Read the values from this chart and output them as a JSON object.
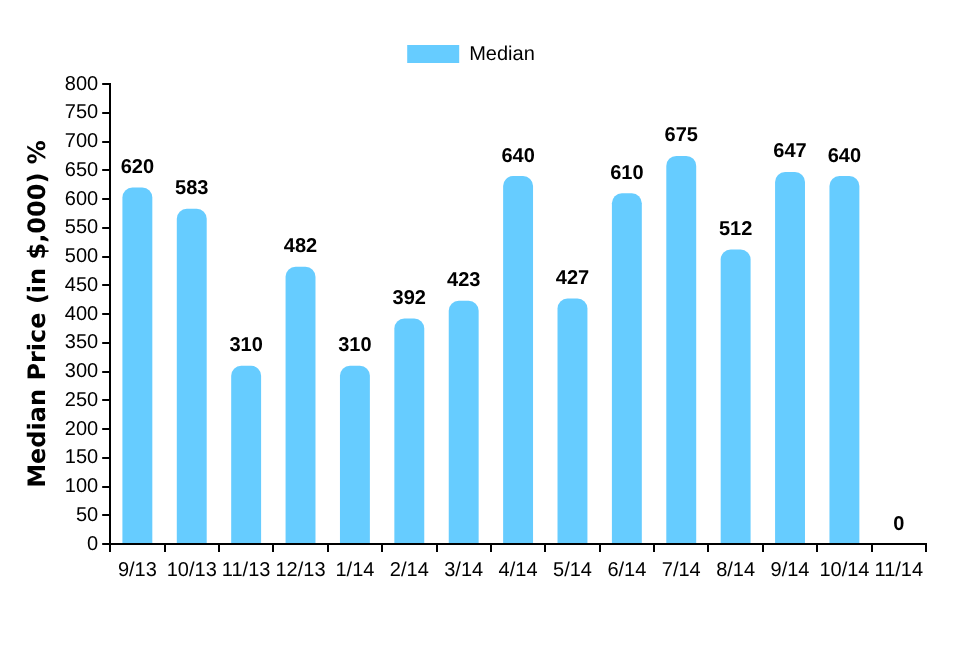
{
  "chart_data": {
    "type": "bar",
    "ylabel": "Median Price (in $,000) %",
    "categories": [
      "9/13",
      "10/13",
      "11/13",
      "12/13",
      "1/14",
      "2/14",
      "3/14",
      "4/14",
      "5/14",
      "6/14",
      "7/14",
      "8/14",
      "9/14",
      "10/14",
      "11/14"
    ],
    "series": [
      {
        "name": "Median",
        "color": "#66ccff",
        "values": [
          620,
          583,
          310,
          482,
          310,
          392,
          423,
          640,
          427,
          610,
          675,
          512,
          647,
          640,
          0
        ]
      }
    ],
    "ylim": [
      0,
      800
    ],
    "yticks": [
      0,
      50,
      100,
      150,
      200,
      250,
      300,
      350,
      400,
      450,
      500,
      550,
      600,
      650,
      700,
      750,
      800
    ],
    "grid": false,
    "legend": "top",
    "data_labels": true
  }
}
